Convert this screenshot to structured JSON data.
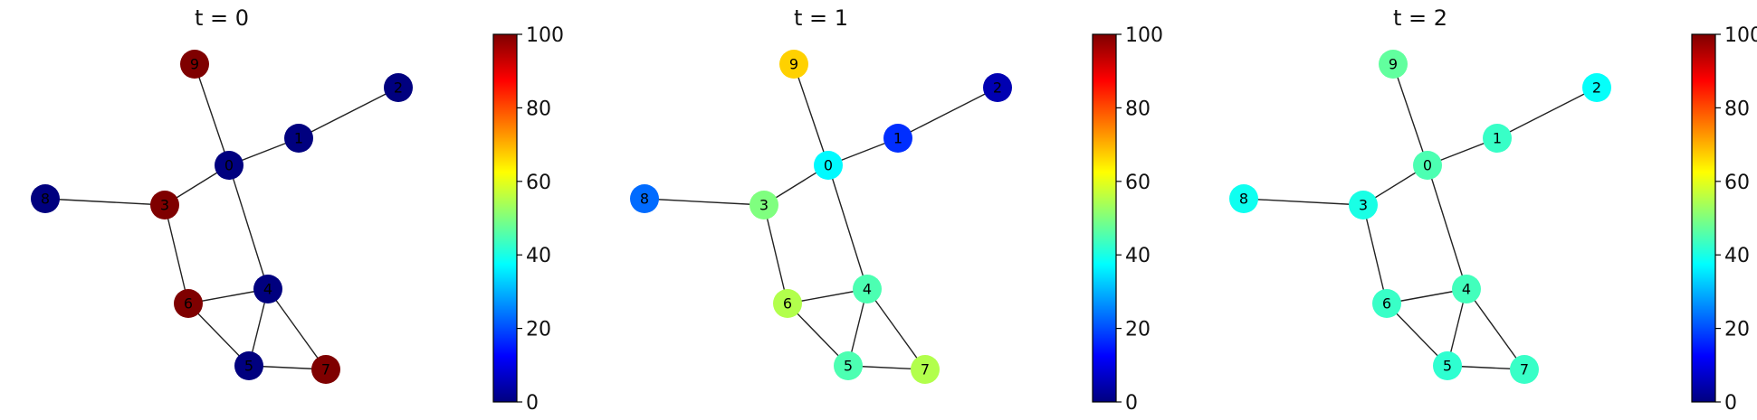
{
  "colormap": {
    "name": "jet",
    "stops": [
      "#00007f",
      "#0000ff",
      "#007fff",
      "#00ffff",
      "#7fff7f",
      "#ffff00",
      "#ff7f00",
      "#ff0000",
      "#7f0000"
    ],
    "min": 0,
    "max": 100,
    "ticks": [
      {
        "value": 0,
        "label": "0"
      },
      {
        "value": 20,
        "label": "20"
      },
      {
        "value": 40,
        "label": "40"
      },
      {
        "value": 60,
        "label": "60"
      },
      {
        "value": 80,
        "label": "80"
      },
      {
        "value": 100,
        "label": "100"
      }
    ]
  },
  "graph": {
    "edges": [
      [
        0,
        1
      ],
      [
        1,
        2
      ],
      [
        0,
        9
      ],
      [
        0,
        3
      ],
      [
        3,
        8
      ],
      [
        3,
        6
      ],
      [
        0,
        4
      ],
      [
        4,
        6
      ],
      [
        4,
        5
      ],
      [
        4,
        7
      ],
      [
        5,
        6
      ],
      [
        5,
        7
      ]
    ]
  },
  "panels": [
    {
      "title": "t = 0",
      "values": [
        {
          "node": "0",
          "value": 0
        },
        {
          "node": "1",
          "value": 0
        },
        {
          "node": "2",
          "value": 0
        },
        {
          "node": "3",
          "value": 100
        },
        {
          "node": "4",
          "value": 0
        },
        {
          "node": "5",
          "value": 0
        },
        {
          "node": "6",
          "value": 100
        },
        {
          "node": "7",
          "value": 100
        },
        {
          "node": "8",
          "value": 0
        },
        {
          "node": "9",
          "value": 100
        }
      ]
    },
    {
      "title": "t = 1",
      "values": [
        {
          "node": "0",
          "value": 37
        },
        {
          "node": "1",
          "value": 17
        },
        {
          "node": "2",
          "value": 5
        },
        {
          "node": "3",
          "value": 50
        },
        {
          "node": "4",
          "value": 45
        },
        {
          "node": "5",
          "value": 45
        },
        {
          "node": "6",
          "value": 55
        },
        {
          "node": "7",
          "value": 55
        },
        {
          "node": "8",
          "value": 23
        },
        {
          "node": "9",
          "value": 67
        }
      ]
    },
    {
      "title": "t = 2",
      "values": [
        {
          "node": "0",
          "value": 45
        },
        {
          "node": "1",
          "value": 43
        },
        {
          "node": "2",
          "value": 38
        },
        {
          "node": "3",
          "value": 40
        },
        {
          "node": "4",
          "value": 44
        },
        {
          "node": "5",
          "value": 42
        },
        {
          "node": "6",
          "value": 43
        },
        {
          "node": "7",
          "value": 43
        },
        {
          "node": "8",
          "value": 39
        },
        {
          "node": "9",
          "value": 47
        }
      ]
    }
  ]
}
